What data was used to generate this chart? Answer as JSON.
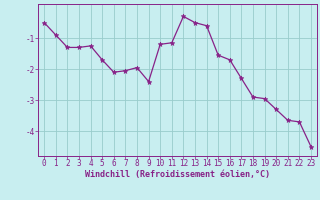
{
  "x": [
    0,
    1,
    2,
    3,
    4,
    5,
    6,
    7,
    8,
    9,
    10,
    11,
    12,
    13,
    14,
    15,
    16,
    17,
    18,
    19,
    20,
    21,
    22,
    23
  ],
  "y": [
    -0.5,
    -0.9,
    -1.3,
    -1.3,
    -1.25,
    -1.7,
    -2.1,
    -2.05,
    -1.95,
    -2.4,
    -1.2,
    -1.15,
    -0.3,
    -0.5,
    -0.6,
    -1.55,
    -1.7,
    -2.3,
    -2.9,
    -2.95,
    -3.3,
    -3.65,
    -3.7,
    -4.5
  ],
  "line_color": "#882288",
  "marker": "o",
  "marker_size": 2.5,
  "bg_color": "#c8eef0",
  "grid_color": "#99cccc",
  "axis_color": "#882288",
  "xlabel": "Windchill (Refroidissement éolien,°C)",
  "ylabel": "",
  "xlim": [
    -0.5,
    23.5
  ],
  "ylim": [
    -4.8,
    0.1
  ],
  "yticks": [
    -4,
    -3,
    -2,
    -1
  ],
  "ytick_labels": [
    "-4",
    "-3",
    "-2",
    "-1"
  ],
  "xticks": [
    0,
    1,
    2,
    3,
    4,
    5,
    6,
    7,
    8,
    9,
    10,
    11,
    12,
    13,
    14,
    15,
    16,
    17,
    18,
    19,
    20,
    21,
    22,
    23
  ],
  "xtick_labels": [
    "0",
    "1",
    "2",
    "3",
    "4",
    "5",
    "6",
    "7",
    "8",
    "9",
    "10",
    "11",
    "12",
    "13",
    "14",
    "15",
    "16",
    "17",
    "18",
    "19",
    "20",
    "21",
    "22",
    "23"
  ],
  "tick_fontsize": 5.5,
  "xlabel_fontsize": 6.0
}
